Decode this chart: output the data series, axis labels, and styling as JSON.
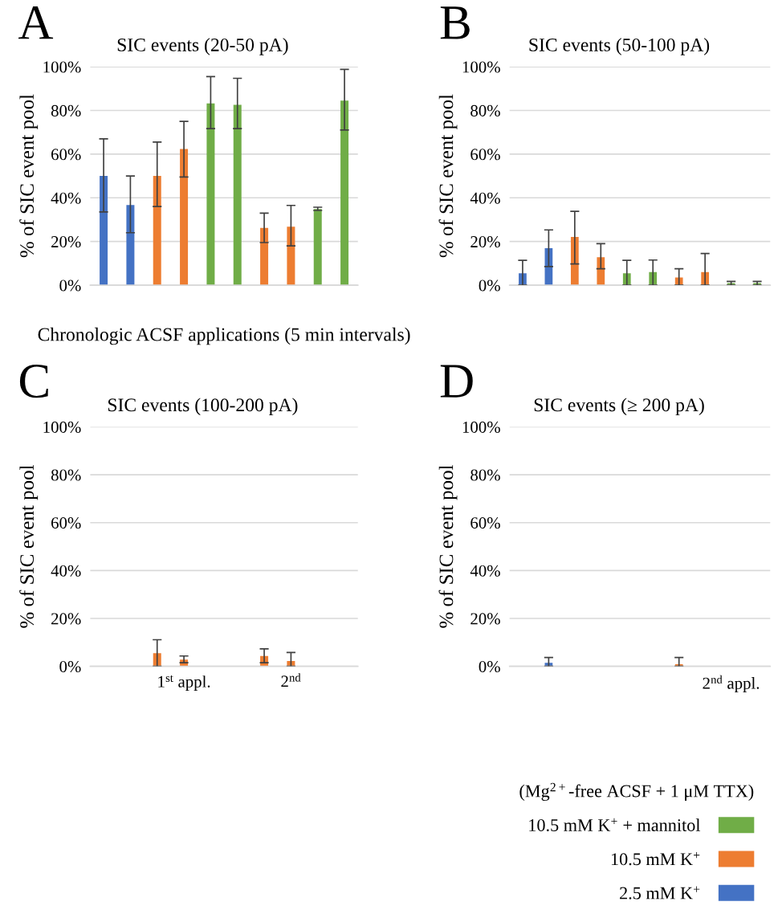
{
  "chart_data": [
    {
      "type": "bar",
      "title": "SIC events (20-50 pA)",
      "xlabel": "Chronologic ACSF applications (5 min intervals)",
      "ylabel": "% of SIC event pool",
      "annotations": [
        "A"
      ],
      "categories": [
        null,
        null,
        null,
        null,
        null,
        null,
        null,
        null,
        null,
        null
      ],
      "ylim": [
        0,
        100
      ],
      "yticks": [
        {
          "value": 0,
          "label": "0%"
        },
        {
          "value": 20,
          "label": "20%"
        },
        {
          "value": 40,
          "label": "40%"
        },
        {
          "value": 60,
          "label": "60%"
        },
        {
          "value": 80,
          "label": "80%"
        },
        {
          "value": 100,
          "label": "100%"
        }
      ],
      "grid": "y",
      "series": [
        {
          "color": "#4472c4",
          "values": [
            50,
            36.7,
            null,
            null,
            null,
            null,
            null,
            null,
            null,
            null
          ],
          "errors": [
            [
              33.5,
              67
            ],
            [
              24,
              50
            ],
            null,
            null,
            null,
            null,
            null,
            null,
            null,
            null
          ]
        },
        {
          "color": "#ed7d31",
          "values": [
            null,
            null,
            50,
            62.3,
            null,
            null,
            26.2,
            26.8,
            null,
            null
          ],
          "errors": [
            null,
            null,
            [
              36,
              65.5
            ],
            [
              49.5,
              75
            ],
            null,
            null,
            [
              19.5,
              33
            ],
            [
              18,
              36.5
            ],
            null,
            null
          ]
        },
        {
          "color": "#70ad47",
          "values": [
            null,
            null,
            null,
            null,
            83.2,
            82.6,
            null,
            null,
            34.9,
            84.5
          ],
          "errors": [
            null,
            null,
            null,
            null,
            [
              71.7,
              95.5
            ],
            [
              71.7,
              94.7
            ],
            null,
            null,
            [
              34.2,
              35.7
            ],
            [
              71,
              98.8
            ]
          ]
        }
      ]
    },
    {
      "type": "bar",
      "title": "SIC events (50-100 pA)",
      "ylabel": "% of SIC event pool",
      "annotations": [
        "B"
      ],
      "categories": [
        null,
        null,
        null,
        null,
        null,
        null,
        null,
        null,
        null,
        null
      ],
      "ylim": [
        0,
        100
      ],
      "yticks": [
        {
          "value": 0,
          "label": "0%"
        },
        {
          "value": 20,
          "label": "20%"
        },
        {
          "value": 40,
          "label": "40%"
        },
        {
          "value": 60,
          "label": "60%"
        },
        {
          "value": 80,
          "label": "80%"
        },
        {
          "value": 100,
          "label": "100%"
        }
      ],
      "grid": "y",
      "series": [
        {
          "color": "#4472c4",
          "values": [
            5.4,
            16.9,
            null,
            null,
            null,
            null,
            null,
            null,
            null,
            null
          ],
          "errors": [
            [
              0,
              11.4
            ],
            [
              8.5,
              25.3
            ],
            null,
            null,
            null,
            null,
            null,
            null,
            null,
            null
          ]
        },
        {
          "color": "#ed7d31",
          "values": [
            null,
            null,
            22.1,
            12.8,
            null,
            null,
            3.5,
            6,
            null,
            null
          ],
          "errors": [
            null,
            null,
            [
              9.7,
              33.8
            ],
            [
              7.5,
              19
            ],
            null,
            null,
            [
              0,
              7.5
            ],
            [
              0,
              14.5
            ],
            null,
            null
          ]
        },
        {
          "color": "#70ad47",
          "values": [
            null,
            null,
            null,
            null,
            5.4,
            6,
            null,
            null,
            0.9,
            0.9
          ],
          "errors": [
            null,
            null,
            null,
            null,
            [
              0,
              11.4
            ],
            [
              0,
              11.5
            ],
            null,
            null,
            [
              0,
              1.7
            ],
            [
              0,
              1.7
            ]
          ]
        }
      ]
    },
    {
      "type": "bar",
      "title": "SIC events (100-200 pA)",
      "ylabel": "% of SIC event pool",
      "annotations": [
        "C"
      ],
      "categories": [
        null,
        null,
        null,
        "1$^{st}$ appl.",
        null,
        null,
        null,
        "2$^{nd}$",
        null,
        null
      ],
      "ylim": [
        0,
        100
      ],
      "yticks": [
        {
          "value": 0,
          "label": "0%"
        },
        {
          "value": 20,
          "label": "20%"
        },
        {
          "value": 40,
          "label": "40%"
        },
        {
          "value": 60,
          "label": "60%"
        },
        {
          "value": 80,
          "label": "80%"
        },
        {
          "value": 100,
          "label": "100%"
        }
      ],
      "grid": "y",
      "series": [
        {
          "color": "#ed7d31",
          "values": [
            null,
            null,
            5.5,
            2.8,
            null,
            null,
            4.3,
            2.2,
            null,
            null
          ],
          "errors": [
            null,
            null,
            [
              0,
              11.1
            ],
            [
              1.5,
              4.3
            ],
            null,
            null,
            [
              1.5,
              7.3
            ],
            [
              0,
              5.8
            ],
            null,
            null
          ]
        }
      ]
    },
    {
      "type": "bar",
      "title": "SIC events (≥ 200 pA)",
      "ylabel": "% of SIC event pool",
      "annotations": [
        "D"
      ],
      "categories": [
        null,
        null,
        null,
        null,
        null,
        null,
        null,
        null,
        "2$^{nd}$ appl.",
        null
      ],
      "ylim": [
        0,
        100
      ],
      "yticks": [
        {
          "value": 0,
          "label": "0%"
        },
        {
          "value": 20,
          "label": "20%"
        },
        {
          "value": 40,
          "label": "40%"
        },
        {
          "value": 60,
          "label": "60%"
        },
        {
          "value": 80,
          "label": "80%"
        },
        {
          "value": 100,
          "label": "100%"
        }
      ],
      "grid": "y",
      "legend": "bottom right",
      "legend_title": "(Mg$^{2+}$-free ACSF + 1 μM TTX)",
      "series": [
        {
          "name": "10.5 mM K$^{+}$ + mannitol",
          "color": "#70ad47",
          "values": [
            null,
            null,
            null,
            null,
            null,
            null,
            null,
            null,
            null,
            null
          ]
        },
        {
          "name": "10.5 mM K$^{+}$",
          "color": "#ed7d31",
          "values": [
            null,
            null,
            null,
            null,
            null,
            null,
            0.9,
            null,
            null,
            null
          ],
          "errors": [
            null,
            null,
            null,
            null,
            null,
            null,
            [
              0,
              3.7
            ],
            null,
            null,
            null
          ]
        },
        {
          "name": "2.5 mM K$^{+}$",
          "color": "#4472c4",
          "values": [
            null,
            1.5,
            null,
            null,
            null,
            null,
            null,
            null,
            null,
            null
          ],
          "errors": [
            null,
            [
              0,
              3.7
            ],
            null,
            null,
            null,
            null,
            null,
            null,
            null,
            null
          ]
        }
      ]
    }
  ]
}
